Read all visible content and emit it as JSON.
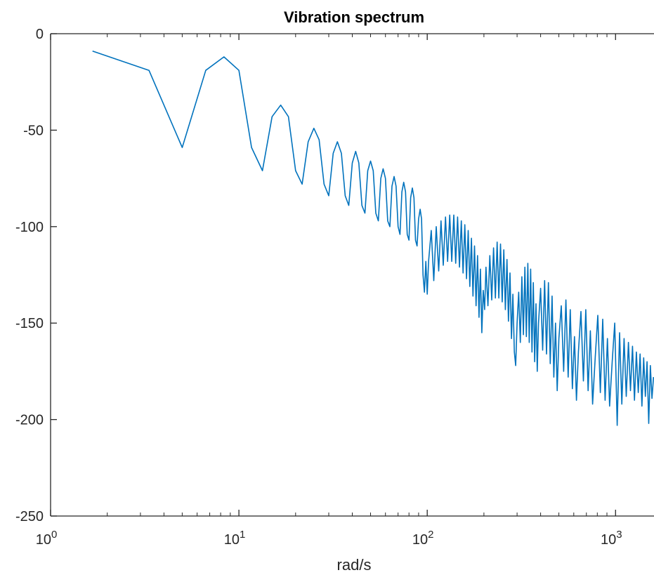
{
  "chart_data": {
    "type": "line",
    "title": "Vibration spectrum",
    "xlabel": "rad/s",
    "ylabel": "",
    "xscale": "log",
    "xlim": [
      1,
      1600
    ],
    "ylim": [
      -250,
      0
    ],
    "grid": false,
    "box": "open-right",
    "x_ticks": [
      {
        "value": 1,
        "base": "10",
        "exponent": "0"
      },
      {
        "value": 10,
        "base": "10",
        "exponent": "1"
      },
      {
        "value": 100,
        "base": "10",
        "exponent": "2"
      },
      {
        "value": 1000,
        "base": "10",
        "exponent": "3"
      }
    ],
    "y_ticks": [
      {
        "value": 0,
        "label": "0"
      },
      {
        "value": -50,
        "label": "-50"
      },
      {
        "value": -100,
        "label": "-100"
      },
      {
        "value": -150,
        "label": "-150"
      },
      {
        "value": -200,
        "label": "-200"
      },
      {
        "value": -250,
        "label": "-250"
      }
    ],
    "series": [
      {
        "color": "#0072BD",
        "points": [
          [
            1.67,
            -9
          ],
          [
            3.33,
            -19
          ],
          [
            5.0,
            -59
          ],
          [
            6.67,
            -19
          ],
          [
            8.33,
            -12
          ],
          [
            10.0,
            -19
          ],
          [
            11.67,
            -59
          ],
          [
            13.33,
            -71
          ],
          [
            15.0,
            -43
          ],
          [
            16.67,
            -37
          ],
          [
            18.33,
            -43
          ],
          [
            20.0,
            -71
          ],
          [
            21.67,
            -78
          ],
          [
            23.33,
            -56
          ],
          [
            25.0,
            -49
          ],
          [
            26.67,
            -55
          ],
          [
            28.33,
            -78
          ],
          [
            30.0,
            -84
          ],
          [
            31.67,
            -62
          ],
          [
            33.33,
            -56
          ],
          [
            35.0,
            -62
          ],
          [
            36.67,
            -84
          ],
          [
            38.33,
            -89
          ],
          [
            40.0,
            -67
          ],
          [
            41.67,
            -61
          ],
          [
            43.33,
            -67
          ],
          [
            45.0,
            -89
          ],
          [
            46.67,
            -93
          ],
          [
            48.33,
            -71
          ],
          [
            50.0,
            -66
          ],
          [
            51.67,
            -71
          ],
          [
            53.33,
            -93
          ],
          [
            55.0,
            -97
          ],
          [
            56.67,
            -75
          ],
          [
            58.33,
            -70
          ],
          [
            60.0,
            -75
          ],
          [
            61.67,
            -97
          ],
          [
            63.33,
            -100
          ],
          [
            65.0,
            -79
          ],
          [
            66.67,
            -74
          ],
          [
            68.33,
            -79
          ],
          [
            70.0,
            -100
          ],
          [
            71.67,
            -104
          ],
          [
            73.33,
            -82
          ],
          [
            75.0,
            -77
          ],
          [
            76.67,
            -82
          ],
          [
            78.33,
            -104
          ],
          [
            80.0,
            -107
          ],
          [
            81.67,
            -85
          ],
          [
            83.33,
            -80
          ],
          [
            85.0,
            -85
          ],
          [
            86.67,
            -107
          ],
          [
            88.33,
            -110
          ],
          [
            90.0,
            -96
          ],
          [
            91.67,
            -91
          ],
          [
            93.33,
            -96
          ],
          [
            95.0,
            -125
          ],
          [
            96.67,
            -134
          ],
          [
            98.33,
            -118
          ],
          [
            100.0,
            -135
          ],
          [
            101.67,
            -118
          ],
          [
            105.0,
            -102
          ],
          [
            108.33,
            -128
          ],
          [
            111.67,
            -100
          ],
          [
            115.0,
            -123
          ],
          [
            118.33,
            -97
          ],
          [
            121.67,
            -120
          ],
          [
            125.0,
            -95
          ],
          [
            128.33,
            -118
          ],
          [
            131.67,
            -94
          ],
          [
            135.0,
            -118
          ],
          [
            138.33,
            -94
          ],
          [
            141.67,
            -119
          ],
          [
            145.0,
            -95
          ],
          [
            148.33,
            -121
          ],
          [
            151.67,
            -97
          ],
          [
            155.0,
            -124
          ],
          [
            158.33,
            -99
          ],
          [
            161.67,
            -127
          ],
          [
            165.0,
            -102
          ],
          [
            168.33,
            -131
          ],
          [
            171.67,
            -106
          ],
          [
            175.0,
            -136
          ],
          [
            178.33,
            -110
          ],
          [
            181.67,
            -141
          ],
          [
            185.0,
            -115
          ],
          [
            188.33,
            -147
          ],
          [
            191.67,
            -122
          ],
          [
            195.0,
            -155
          ],
          [
            198.33,
            -133
          ],
          [
            201.67,
            -143
          ],
          [
            205.0,
            -121
          ],
          [
            210.0,
            -141
          ],
          [
            215.0,
            -115
          ],
          [
            220.0,
            -138
          ],
          [
            225.0,
            -111
          ],
          [
            230.0,
            -137
          ],
          [
            235.0,
            -108
          ],
          [
            240.0,
            -137
          ],
          [
            245.0,
            -109
          ],
          [
            250.0,
            -139
          ],
          [
            255.0,
            -112
          ],
          [
            260.0,
            -143
          ],
          [
            265.0,
            -117
          ],
          [
            270.0,
            -149
          ],
          [
            275.0,
            -124
          ],
          [
            280.0,
            -158
          ],
          [
            285.0,
            -135
          ],
          [
            290.0,
            -165
          ],
          [
            295.0,
            -172
          ],
          [
            300.0,
            -150
          ],
          [
            306.0,
            -134
          ],
          [
            312.0,
            -160
          ],
          [
            318.0,
            -126
          ],
          [
            324.0,
            -156
          ],
          [
            330.0,
            -121
          ],
          [
            336.0,
            -157
          ],
          [
            342.0,
            -119
          ],
          [
            348.0,
            -160
          ],
          [
            354.0,
            -122
          ],
          [
            360.0,
            -165
          ],
          [
            366.0,
            -129
          ],
          [
            372.0,
            -170
          ],
          [
            378.0,
            -140
          ],
          [
            384.0,
            -175
          ],
          [
            390.0,
            -150
          ],
          [
            400.0,
            -132
          ],
          [
            410.0,
            -164
          ],
          [
            420.0,
            -128
          ],
          [
            430.0,
            -166
          ],
          [
            440.0,
            -129
          ],
          [
            450.0,
            -171
          ],
          [
            460.0,
            -136
          ],
          [
            470.0,
            -178
          ],
          [
            480.0,
            -150
          ],
          [
            490.0,
            -185
          ],
          [
            500.0,
            -158
          ],
          [
            515.0,
            -141
          ],
          [
            530.0,
            -175
          ],
          [
            545.0,
            -138
          ],
          [
            560.0,
            -178
          ],
          [
            575.0,
            -143
          ],
          [
            590.0,
            -184
          ],
          [
            605.0,
            -157
          ],
          [
            620.0,
            -190
          ],
          [
            635.0,
            -165
          ],
          [
            655.0,
            -144
          ],
          [
            675.0,
            -180
          ],
          [
            695.0,
            -143
          ],
          [
            715.0,
            -185
          ],
          [
            735.0,
            -154
          ],
          [
            755.0,
            -192
          ],
          [
            780.0,
            -168
          ],
          [
            805.0,
            -146
          ],
          [
            830.0,
            -186
          ],
          [
            855.0,
            -148
          ],
          [
            880.0,
            -190
          ],
          [
            905.0,
            -158
          ],
          [
            930.0,
            -193
          ],
          [
            960.0,
            -170
          ],
          [
            990.0,
            -150
          ],
          [
            1020.0,
            -203
          ],
          [
            1050.0,
            -155
          ],
          [
            1080.0,
            -192
          ],
          [
            1110.0,
            -158
          ],
          [
            1140.0,
            -188
          ],
          [
            1170.0,
            -160
          ],
          [
            1200.0,
            -185
          ],
          [
            1230.0,
            -162
          ],
          [
            1260.0,
            -190
          ],
          [
            1290.0,
            -165
          ],
          [
            1320.0,
            -186
          ],
          [
            1350.0,
            -166
          ],
          [
            1380.0,
            -193
          ],
          [
            1410.0,
            -168
          ],
          [
            1440.0,
            -188
          ],
          [
            1470.0,
            -170
          ],
          [
            1500.0,
            -202
          ],
          [
            1530.0,
            -172
          ],
          [
            1560.0,
            -189
          ],
          [
            1590.0,
            -178
          ]
        ]
      }
    ]
  }
}
